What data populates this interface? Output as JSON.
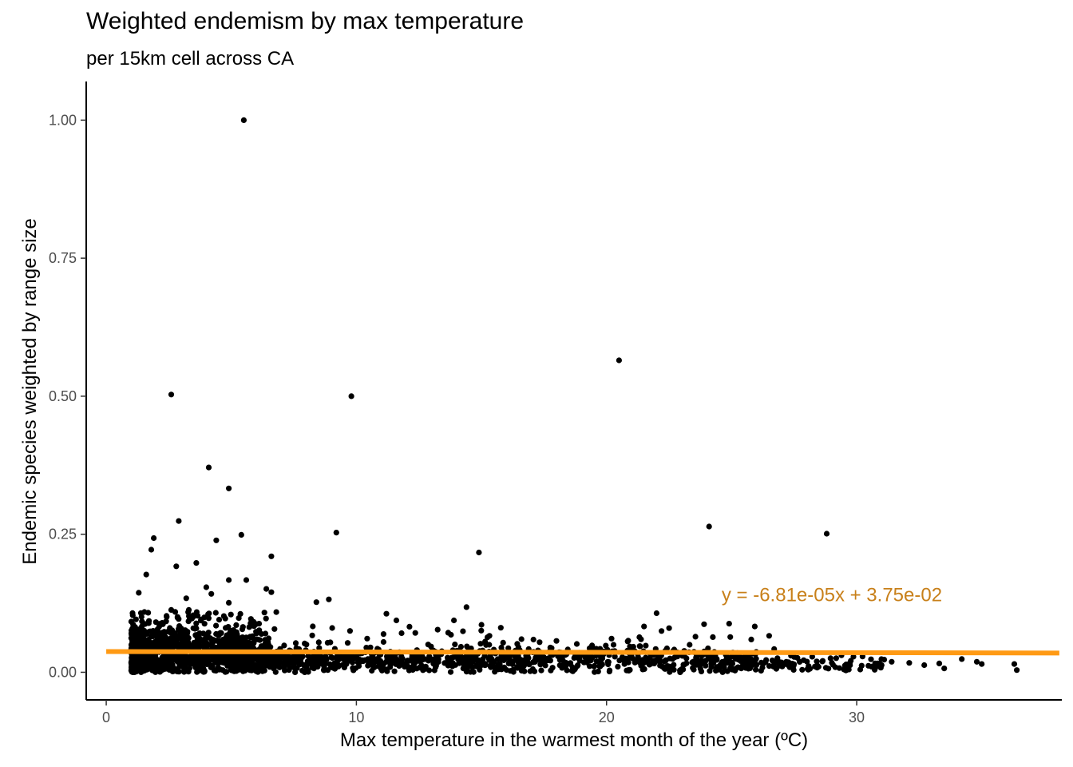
{
  "chart_data": {
    "type": "scatter",
    "title": "Weighted endemism by max temperature",
    "subtitle": "per 15km cell across CA",
    "xlabel": "Max temperature in the warmest month of the year (ºC)",
    "ylabel": "Endemic species weighted by range size",
    "xlim": [
      -0.8,
      38.2
    ],
    "ylim": [
      -0.05,
      1.07
    ],
    "x_ticks": [
      {
        "value": 0,
        "label": "0"
      },
      {
        "value": 10,
        "label": "10"
      },
      {
        "value": 20,
        "label": "20"
      },
      {
        "value": 30,
        "label": "30"
      }
    ],
    "y_ticks": [
      {
        "value": 0,
        "label": "0.00"
      },
      {
        "value": 0.25,
        "label": "0.25"
      },
      {
        "value": 0.5,
        "label": "0.50"
      },
      {
        "value": 0.75,
        "label": "0.75"
      },
      {
        "value": 1.0,
        "label": "1.00"
      }
    ],
    "grid": false,
    "point_color": "#000000",
    "fit_line": {
      "slope": -6.81e-05,
      "intercept": 0.0375,
      "color": "#FF9A14",
      "equation_label": "y = -6.81e-05x + 3.75e-02",
      "label_color": "#C8801A",
      "label_at": [
        24.6,
        0.14
      ]
    },
    "notable_points": [
      [
        5.5,
        1.0
      ],
      [
        20.5,
        0.565
      ],
      [
        2.6,
        0.503
      ],
      [
        9.8,
        0.5
      ],
      [
        4.1,
        0.371
      ],
      [
        4.9,
        0.333
      ],
      [
        2.9,
        0.274
      ],
      [
        24.1,
        0.264
      ],
      [
        9.2,
        0.253
      ],
      [
        28.8,
        0.251
      ],
      [
        5.4,
        0.249
      ],
      [
        1.9,
        0.243
      ],
      [
        4.4,
        0.239
      ],
      [
        1.8,
        0.222
      ],
      [
        14.9,
        0.217
      ],
      [
        6.6,
        0.21
      ],
      [
        3.6,
        0.198
      ],
      [
        2.8,
        0.192
      ],
      [
        1.6,
        0.177
      ],
      [
        5.6,
        0.167
      ],
      [
        4.9,
        0.167
      ],
      [
        4.0,
        0.154
      ],
      [
        6.4,
        0.151
      ],
      [
        6.6,
        0.145
      ],
      [
        1.3,
        0.144
      ],
      [
        4.2,
        0.142
      ],
      [
        3.2,
        0.134
      ],
      [
        8.9,
        0.132
      ],
      [
        8.4,
        0.127
      ],
      [
        4.9,
        0.126
      ],
      [
        14.4,
        0.118
      ],
      [
        2.6,
        0.113
      ],
      [
        3.3,
        0.113
      ],
      [
        6.8,
        0.109
      ],
      [
        22.0,
        0.107
      ],
      [
        11.2,
        0.106
      ],
      [
        13.9,
        0.094
      ],
      [
        11.6,
        0.094
      ],
      [
        24.9,
        0.088
      ],
      [
        23.9,
        0.087
      ],
      [
        15.0,
        0.086
      ],
      [
        21.5,
        0.083
      ],
      [
        22.5,
        0.08
      ],
      [
        26.5,
        0.066
      ],
      [
        20.2,
        0.061
      ],
      [
        26.7,
        0.042
      ],
      [
        31.1,
        0.023
      ],
      [
        31.4,
        0.019
      ],
      [
        32.1,
        0.017
      ],
      [
        33.3,
        0.016
      ],
      [
        34.2,
        0.024
      ],
      [
        34.8,
        0.019
      ],
      [
        36.3,
        0.015
      ],
      [
        36.4,
        0.004
      ],
      [
        33.5,
        0.007
      ],
      [
        32.7,
        0.013
      ],
      [
        35.0,
        0.015
      ],
      [
        30.2,
        0.012
      ]
    ],
    "bulk_note": "dense cloud of several thousand cells at x≈1–30, y≈0–0.10, thinning toward higher temperatures"
  }
}
